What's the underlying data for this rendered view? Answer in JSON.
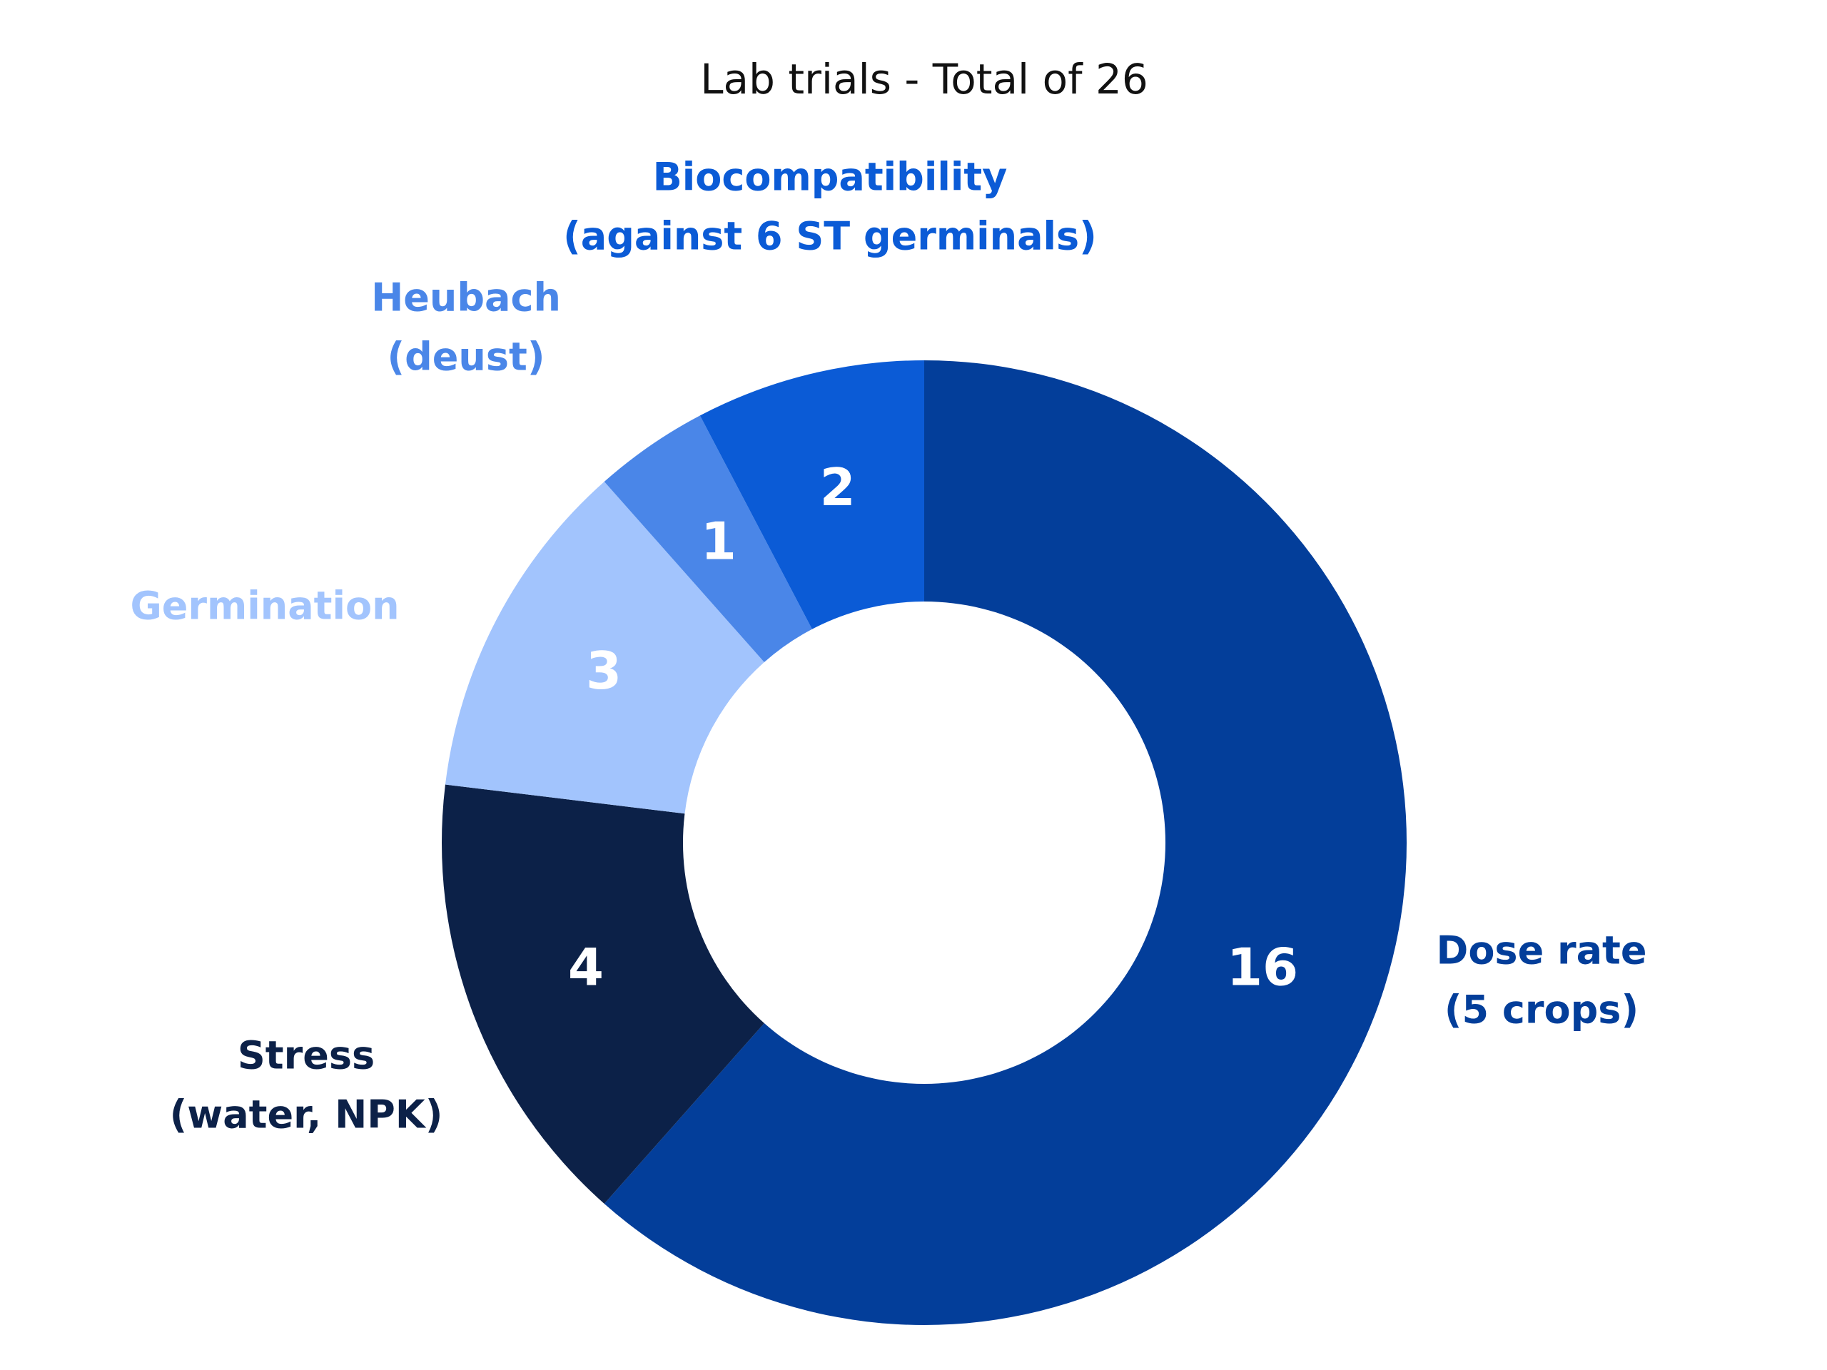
{
  "chart_data": {
    "type": "donut",
    "title": "Lab trials - Total of 26",
    "categories": [
      [
        "Dose rate",
        "(5 crops)"
      ],
      [
        "Stress",
        "(water, NPK)"
      ],
      [
        "Germination"
      ],
      [
        "Heubach",
        "(deust)"
      ],
      [
        "Biocompatibility",
        "(against 6 ST germinals)"
      ]
    ],
    "values": [
      16,
      4,
      3,
      1,
      2
    ],
    "colors": [
      "#033e9a",
      "#0c2148",
      "#a2c4fd",
      "#4a86e8",
      "#0b5bd6"
    ]
  }
}
